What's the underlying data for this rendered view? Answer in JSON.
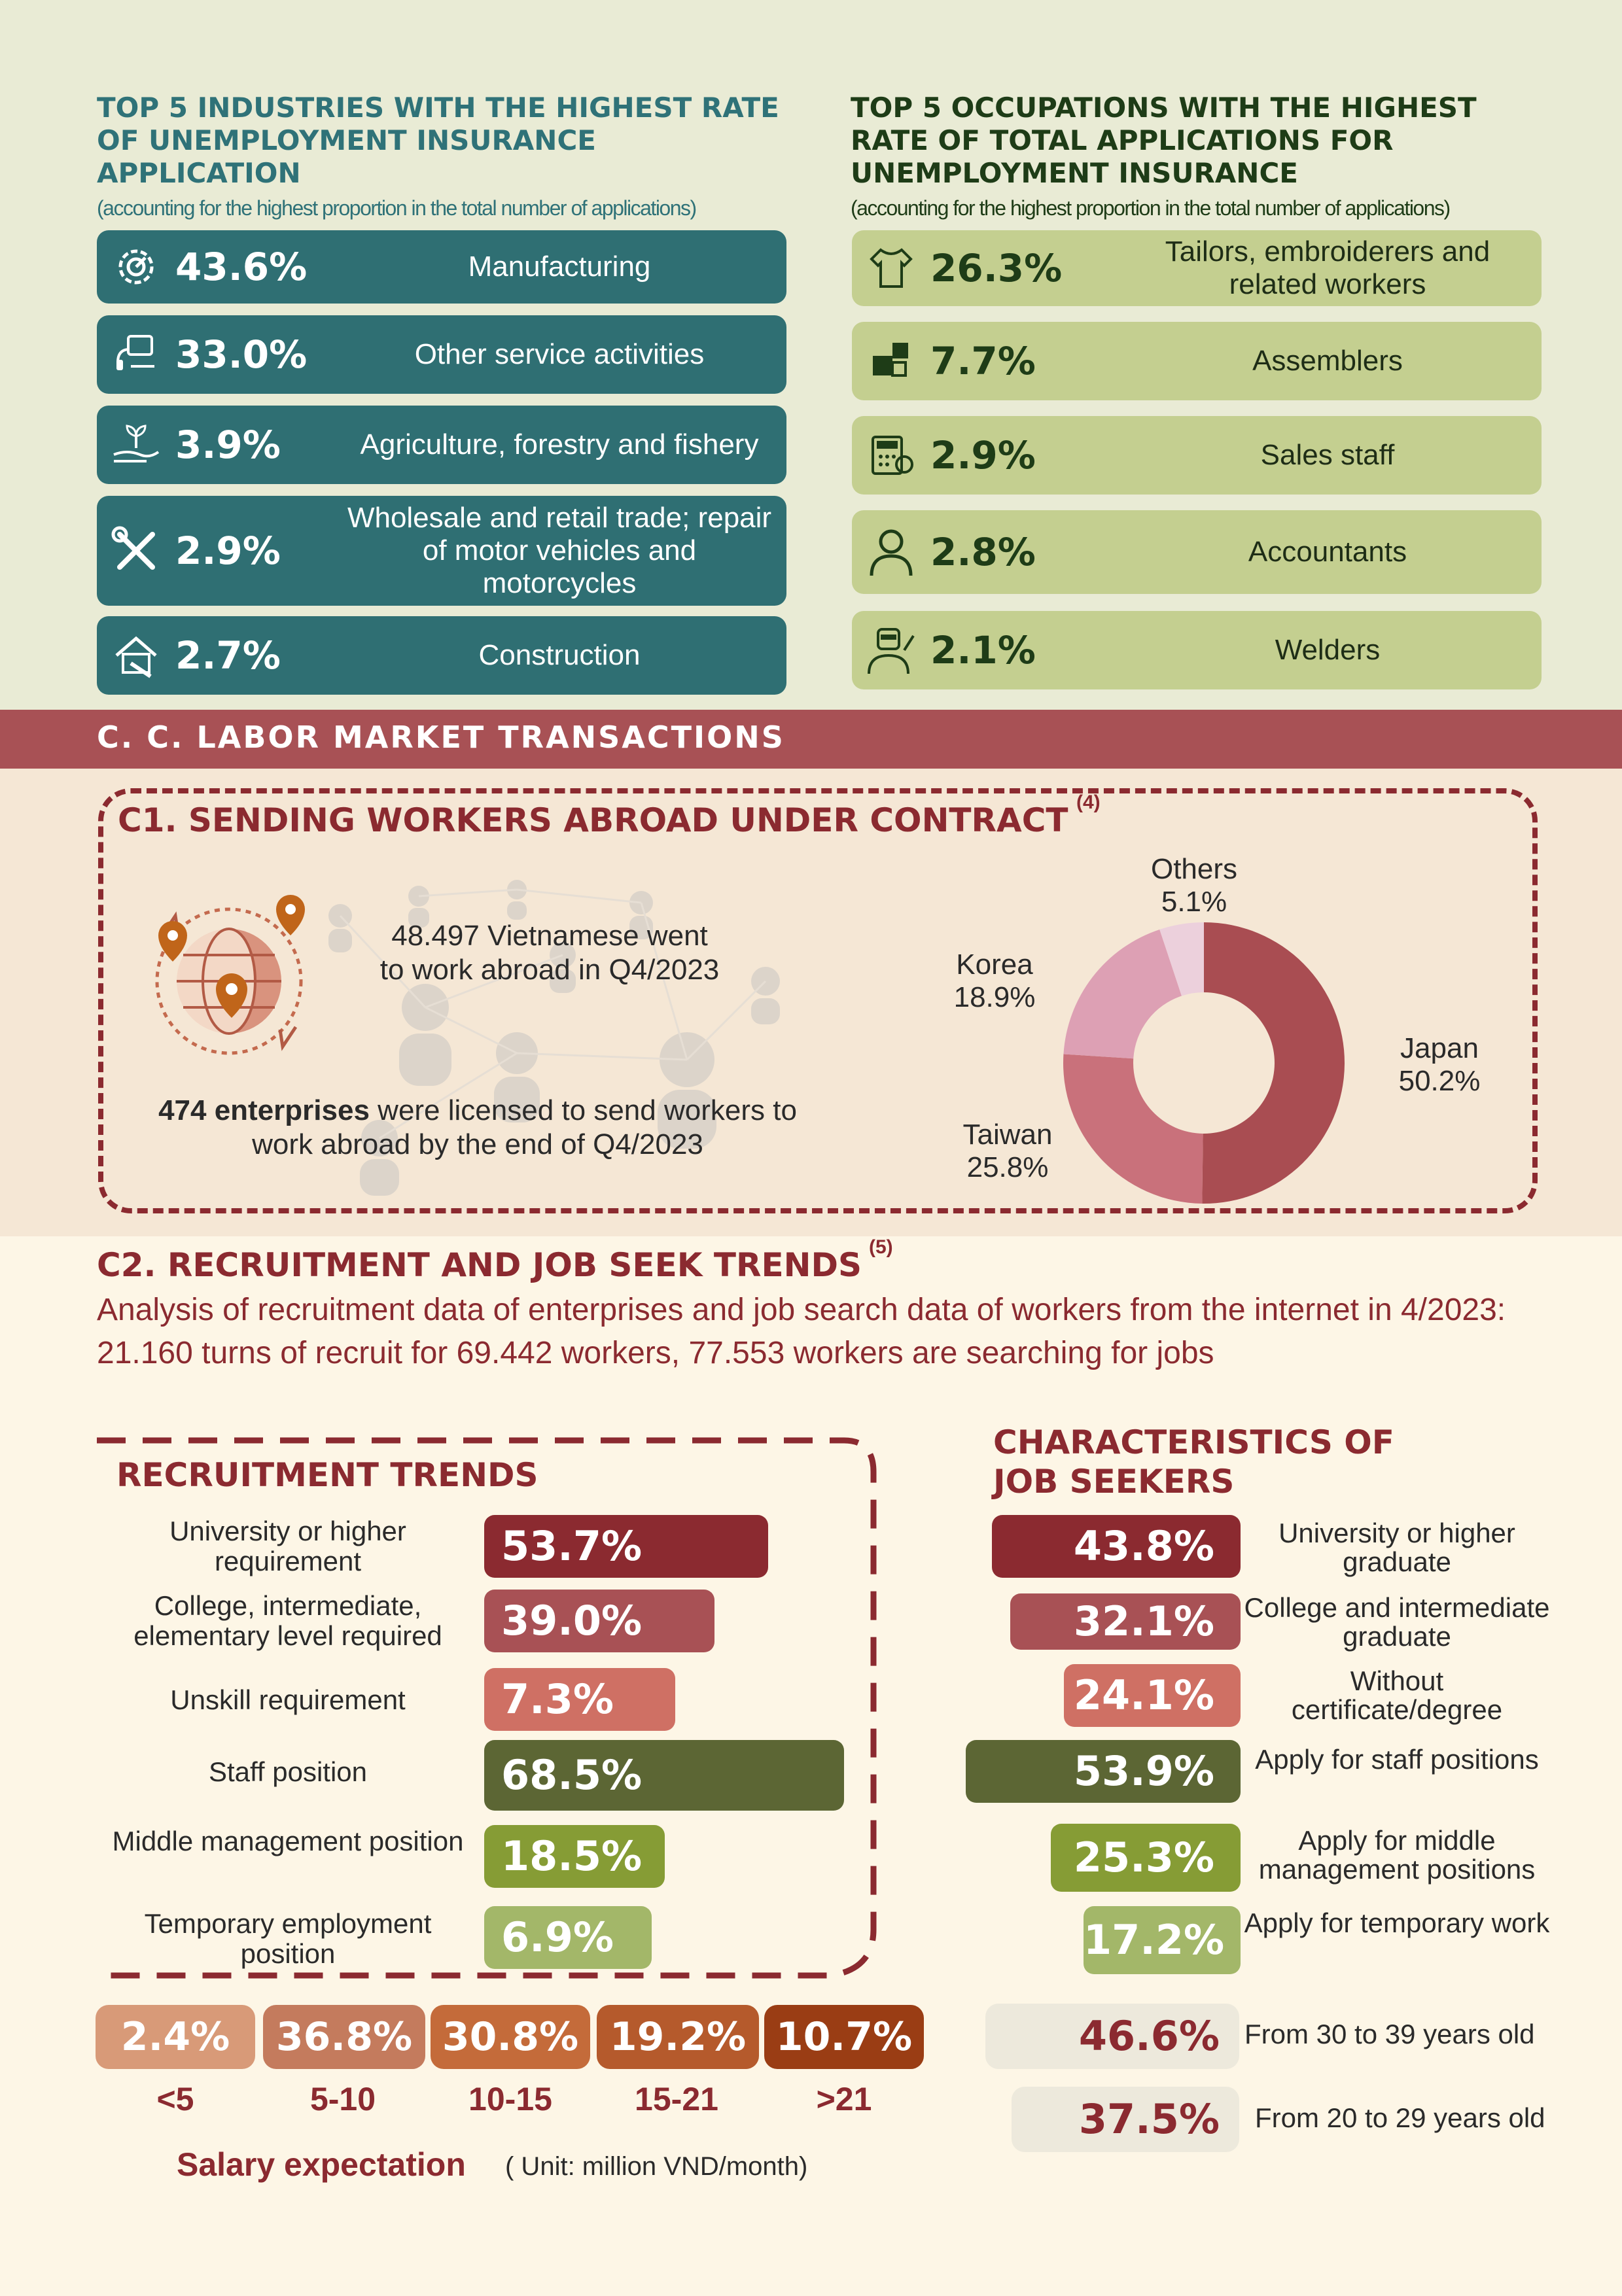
{
  "industries": {
    "title": "TOP 5 INDUSTRIES WITH THE HIGHEST RATE OF UNEMPLOYMENT INSURANCE APPLICATION",
    "note": "(accounting for the highest proportion in the total number of applications)",
    "items": [
      {
        "pct": "43.6%",
        "label": "Manufacturing",
        "icon": "gear-icon"
      },
      {
        "pct": "33.0%",
        "label": "Other service activities",
        "icon": "service-desk-icon"
      },
      {
        "pct": "3.9%",
        "label": "Agriculture, forestry and fishery",
        "icon": "plant-hand-icon"
      },
      {
        "pct": "2.9%",
        "label": "Wholesale and retail trade; repair of motor vehicles and motorcycles",
        "icon": "tools-icon"
      },
      {
        "pct": "2.7%",
        "label": "Construction",
        "icon": "construction-icon"
      }
    ]
  },
  "occupations": {
    "title": "TOP 5 OCCUPATIONS WITH THE HIGHEST RATE OF TOTAL APPLICATIONS FOR UNEMPLOYMENT INSURANCE",
    "note": "(accounting for the highest proportion in the total number of applications)",
    "items": [
      {
        "pct": "26.3%",
        "label": "Tailors, embroiderers and related workers",
        "icon": "shirt-icon"
      },
      {
        "pct": "7.7%",
        "label": "Assemblers",
        "icon": "puzzle-icon"
      },
      {
        "pct": "2.9%",
        "label": "Sales staff",
        "icon": "cash-register-icon"
      },
      {
        "pct": "2.8%",
        "label": "Accountants",
        "icon": "person-icon"
      },
      {
        "pct": "2.1%",
        "label": "Welders",
        "icon": "welder-icon"
      }
    ]
  },
  "section_c": {
    "title": "C. C. LABOR MARKET TRANSACTIONS"
  },
  "c1": {
    "title": "C1. SENDING WORKERS ABROAD UNDER CONTRACT",
    "sup": "(4)",
    "workers_text": "48.497 Vietnamese went to work abroad in Q4/2023",
    "enterprises_bold": "474 enterprises",
    "enterprises_rest": " were licensed to send workers to work abroad by the end of Q4/2023",
    "colors": {
      "japan": "#a94d52",
      "taiwan": "#c9717b",
      "korea": "#dda0b4",
      "others": "#ecd0dc"
    }
  },
  "chart_data": {
    "type": "pie",
    "categories": [
      "Japan",
      "Taiwan",
      "Korea",
      "Others"
    ],
    "values": [
      50.2,
      25.8,
      18.9,
      5.1
    ],
    "value_labels": [
      "50.2%",
      "25.8%",
      "18.9%",
      "5.1%"
    ]
  },
  "c2": {
    "title": "C2. RECRUITMENT AND JOB SEEK TRENDS",
    "sup": "(5)",
    "desc": "Analysis of recruitment data of enterprises and job search data of workers from the internet in 4/2023: 21.160 turns of recruit for 69.442 workers, 77.553 workers are searching for jobs"
  },
  "recruitment": {
    "title": "RECRUITMENT TRENDS",
    "items": [
      {
        "label": "University or higher requirement",
        "pct": "53.7%",
        "value": 53.7,
        "color": "#8b2a30"
      },
      {
        "label": "College, intermediate, elementary level required",
        "pct": "39.0%",
        "value": 39.0,
        "color": "#a85155"
      },
      {
        "label": "Unskill requirement",
        "pct": "7.3%",
        "value": 7.3,
        "color": "#cf7064"
      },
      {
        "label": "Staff position",
        "pct": "68.5%",
        "value": 68.5,
        "color": "#5c6634"
      },
      {
        "label": "Middle management position",
        "pct": "18.5%",
        "value": 18.5,
        "color": "#869c35"
      },
      {
        "label": "Temporary employment position",
        "pct": "6.9%",
        "value": 6.9,
        "color": "#a3b769"
      }
    ]
  },
  "job_seekers": {
    "title": "CHARACTERISTICS OF JOB SEEKERS",
    "items": [
      {
        "label": "University or higher graduate",
        "pct": "43.8%",
        "value": 43.8,
        "color": "#8b2a30"
      },
      {
        "label": "College and intermediate graduate",
        "pct": "32.1%",
        "value": 32.1,
        "color": "#a85155"
      },
      {
        "label": "Without certificate/degree",
        "pct": "24.1%",
        "value": 24.1,
        "color": "#cf7064"
      },
      {
        "label": "Apply for staff positions",
        "pct": "53.9%",
        "value": 53.9,
        "color": "#5c6634"
      },
      {
        "label": "Apply for middle management positions",
        "pct": "25.3%",
        "value": 25.3,
        "color": "#869c35"
      },
      {
        "label": "Apply for temporary work",
        "pct": "17.2%",
        "value": 17.2,
        "color": "#a3b769"
      }
    ],
    "ages": [
      {
        "pct": "46.6%",
        "label": "From 30 to 39 years old"
      },
      {
        "pct": "37.5%",
        "label": "From 20 to 29 years old"
      }
    ]
  },
  "salary": {
    "items": [
      {
        "pct": "2.4%",
        "range": "<5",
        "color": "#d89a78"
      },
      {
        "pct": "36.8%",
        "range": "5-10",
        "color": "#c47b5d"
      },
      {
        "pct": "30.8%",
        "range": "10-15",
        "color": "#c46b3a"
      },
      {
        "pct": "19.2%",
        "range": "15-21",
        "color": "#b55a2c"
      },
      {
        "pct": "10.7%",
        "range": ">21",
        "color": "#9a3d14"
      }
    ],
    "title": "Salary expectation",
    "unit": "( Unit: million VND/month)"
  }
}
